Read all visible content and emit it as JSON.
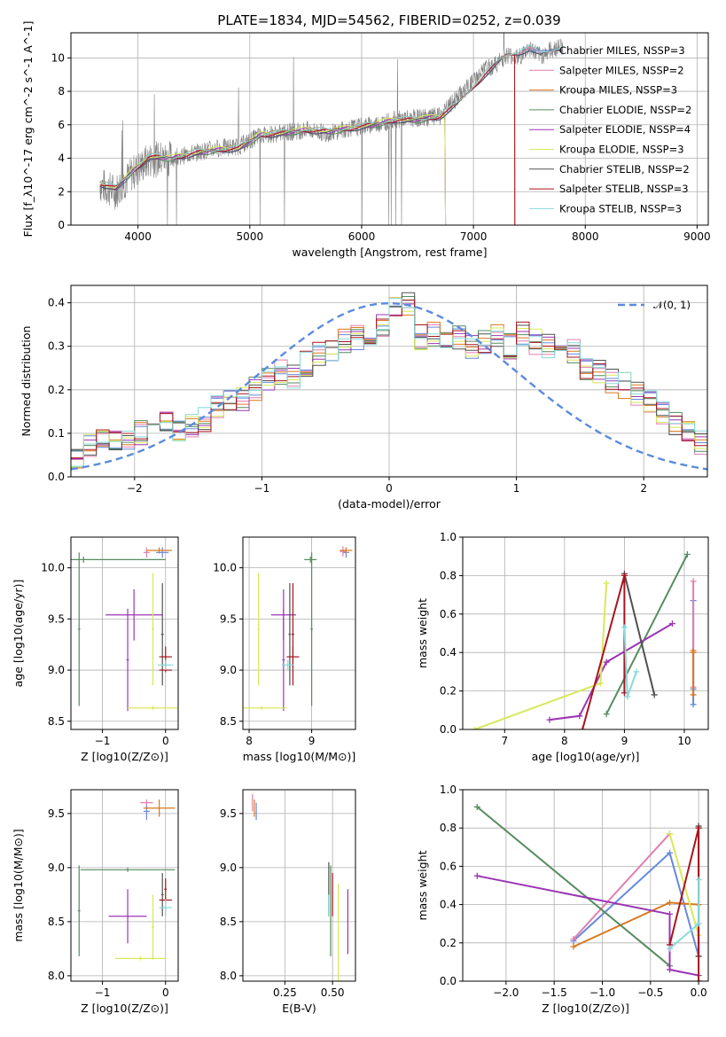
{
  "title": "PLATE=1834, MJD=54562, FIBERID=0252, z=0.039",
  "colors": {
    "Chabrier MILES": "#6688dd",
    "Salpeter MILES": "#e07fb0",
    "Kroupa MILES": "#d9781e",
    "Chabrier ELODIE": "#568c5e",
    "Salpeter ELODIE": "#9b35b5",
    "Kroupa ELODIE": "#d8e85a",
    "Chabrier STELIB": "#505050",
    "Salpeter STELIB": "#a8141e",
    "Kroupa STELIB": "#86dada",
    "data": "#808080"
  },
  "legend_main": [
    "Chabrier MILES, N$_{SSP}$=3",
    "Salpeter MILES, N$_{SSP}$=2",
    "Kroupa MILES, N$_{SSP}$=3",
    "Chabrier ELODIE, N$_{SSP}$=2",
    "Salpeter ELODIE, N$_{SSP}$=4",
    "Kroupa ELODIE, N$_{SSP}$=3",
    "Chabrier STELIB, N$_{SSP}$=2",
    "Salpeter STELIB, N$_{SSP}$=3",
    "Kroupa STELIB, N$_{SSP}$=3"
  ],
  "chart_data": [
    {
      "type": "line",
      "panel": "spectrum",
      "title": "PLATE=1834, MJD=54562, FIBERID=0252, z=0.039",
      "xlabel": "wavelength [Angstrom, rest frame]",
      "ylabel": "Flux [f_λ10^-17 erg cm^-2 s^-1 A^-1]",
      "xlim": [
        3400,
        9100
      ],
      "ylim": [
        0,
        11.5
      ],
      "xticks": [
        4000,
        5000,
        6000,
        7000,
        8000,
        9000
      ],
      "yticks": [
        0,
        2,
        4,
        6,
        8,
        10
      ],
      "series": [
        {
          "name": "data",
          "x": [
            3660,
            3800,
            3950,
            4100,
            4300,
            4500,
            4700,
            4900,
            5100,
            5300,
            5500,
            5700,
            5900,
            6100,
            6300,
            6500,
            6700,
            6850,
            7000,
            7100,
            7200,
            7300,
            7400,
            7500,
            7600,
            7700,
            7800
          ],
          "y": [
            2.4,
            2.0,
            3.1,
            3.9,
            4.0,
            4.3,
            4.6,
            4.7,
            5.4,
            5.5,
            5.7,
            5.5,
            5.8,
            6.0,
            6.3,
            6.4,
            6.5,
            7.6,
            8.6,
            9.3,
            9.6,
            10.2,
            10.0,
            10.6,
            10.1,
            10.5,
            10.7
          ]
        },
        {
          "name": "model_mean",
          "x": [
            3660,
            3800,
            3950,
            4100,
            4300,
            4500,
            4700,
            4900,
            5100,
            5300,
            5500,
            5700,
            5900,
            6100,
            6300,
            6500,
            6700,
            6850,
            7000,
            7100,
            7200,
            7300,
            7400,
            7500,
            7600,
            7700,
            7800
          ],
          "y": [
            2.5,
            2.2,
            3.2,
            4.1,
            4.0,
            4.3,
            4.5,
            4.6,
            5.4,
            5.5,
            5.7,
            5.6,
            5.8,
            6.0,
            6.3,
            6.3,
            6.5,
            7.2,
            8.3,
            9.0,
            9.6,
            10.2,
            10.3,
            10.6,
            10.2,
            10.5,
            10.6
          ]
        }
      ]
    },
    {
      "type": "bar",
      "panel": "residual histogram",
      "xlabel": "(data-model)/error",
      "ylabel": "Normed distribution",
      "xlim": [
        -2.5,
        2.5
      ],
      "ylim": [
        0,
        0.44
      ],
      "xticks": [
        -2,
        -1,
        0,
        1,
        2
      ],
      "yticks": [
        0.0,
        0.1,
        0.2,
        0.3,
        0.4
      ],
      "legend": "𝒩(0, 1)",
      "bin_width": 0.1,
      "bin_start": -2.5,
      "values": [
        0.05,
        0.07,
        0.08,
        0.09,
        0.08,
        0.1,
        0.14,
        0.12,
        0.11,
        0.12,
        0.13,
        0.16,
        0.17,
        0.18,
        0.2,
        0.22,
        0.24,
        0.23,
        0.26,
        0.28,
        0.29,
        0.31,
        0.32,
        0.33,
        0.35,
        0.39,
        0.4,
        0.32,
        0.33,
        0.31,
        0.32,
        0.3,
        0.31,
        0.32,
        0.3,
        0.33,
        0.31,
        0.3,
        0.28,
        0.29,
        0.25,
        0.24,
        0.22,
        0.21,
        0.19,
        0.17,
        0.15,
        0.12,
        0.1,
        0.08
      ]
    },
    {
      "type": "scatter",
      "panel": "age vs Z",
      "xlabel": "Z [log10(Z/Z⊙)]",
      "ylabel": "age [log10(age/yr)]",
      "xlim": [
        -1.5,
        0.2
      ],
      "ylim": [
        8.42,
        10.3
      ],
      "xticks": [
        -1,
        0
      ],
      "yticks": [
        8.5,
        9.0,
        9.5,
        10.0
      ],
      "points": [
        {
          "series": "Chabrier MILES",
          "x": -0.05,
          "y": 10.15,
          "xerr": 0.1,
          "yerr": 0.05
        },
        {
          "series": "Salpeter MILES",
          "x": -0.3,
          "y": 10.15,
          "xerr": 0.05,
          "yerr": 0.05
        },
        {
          "series": "Kroupa MILES",
          "x": -0.1,
          "y": 10.17,
          "xerr": 0.2,
          "yerr": 0.03
        },
        {
          "series": "Chabrier ELODIE",
          "x": -1.3,
          "y": 10.08,
          "xerr": 1.3,
          "yerr": 0.03
        },
        {
          "series": "Chabrier ELODIE",
          "x": -1.37,
          "y": 9.4,
          "xerr": 0.02,
          "yerr": 0.75
        },
        {
          "series": "Salpeter ELODIE",
          "x": -0.5,
          "y": 9.54,
          "xerr": 0.45,
          "yerr": 0.25
        },
        {
          "series": "Salpeter ELODIE",
          "x": -0.6,
          "y": 9.1,
          "xerr": 0.02,
          "yerr": 0.5
        },
        {
          "series": "Kroupa ELODIE",
          "x": -0.2,
          "y": 8.63,
          "xerr": 0.4,
          "yerr": 0.02
        },
        {
          "series": "Kroupa ELODIE",
          "x": -0.2,
          "y": 9.4,
          "xerr": 0.02,
          "yerr": 0.55
        },
        {
          "series": "Chabrier STELIB",
          "x": -0.05,
          "y": 9.35,
          "xerr": 0.02,
          "yerr": 0.5
        },
        {
          "series": "Salpeter STELIB",
          "x": 0.0,
          "y": 9.13,
          "xerr": 0.1,
          "yerr": 0.1
        },
        {
          "series": "Salpeter STELIB",
          "x": 0.0,
          "y": 9.0,
          "xerr": 0.1,
          "yerr": 0.02
        },
        {
          "series": "Kroupa STELIB",
          "x": 0.0,
          "y": 9.05,
          "xerr": 0.12,
          "yerr": 0.05
        }
      ]
    },
    {
      "type": "scatter",
      "panel": "age vs mass",
      "xlabel": "mass [log10(M/M⊙)]",
      "xlim": [
        7.9,
        9.7
      ],
      "ylim": [
        8.42,
        10.3
      ],
      "xticks": [
        8,
        9
      ],
      "yticks": [
        8.5,
        9.0,
        9.5,
        10.0
      ],
      "points": [
        {
          "series": "Chabrier MILES",
          "x": 9.55,
          "y": 10.15,
          "xerr": 0.05,
          "yerr": 0.05
        },
        {
          "series": "Salpeter MILES",
          "x": 9.5,
          "y": 10.16,
          "xerr": 0.05,
          "yerr": 0.05
        },
        {
          "series": "Kroupa MILES",
          "x": 9.55,
          "y": 10.17,
          "xerr": 0.1,
          "yerr": 0.03
        },
        {
          "series": "Chabrier ELODIE",
          "x": 8.98,
          "y": 10.08,
          "xerr": 0.1,
          "yerr": 0.03
        },
        {
          "series": "Chabrier ELODIE",
          "x": 9.0,
          "y": 9.4,
          "xerr": 0.02,
          "yerr": 0.75
        },
        {
          "series": "Salpeter ELODIE",
          "x": 8.55,
          "y": 9.54,
          "xerr": 0.2,
          "yerr": 0.25
        },
        {
          "series": "Salpeter ELODIE",
          "x": 8.55,
          "y": 9.1,
          "xerr": 0.02,
          "yerr": 0.5
        },
        {
          "series": "Kroupa ELODIE",
          "x": 8.2,
          "y": 8.63,
          "xerr": 0.4,
          "yerr": 0.02
        },
        {
          "series": "Kroupa ELODIE",
          "x": 8.15,
          "y": 9.4,
          "xerr": 0.02,
          "yerr": 0.55
        },
        {
          "series": "Chabrier STELIB",
          "x": 8.65,
          "y": 9.35,
          "xerr": 0.02,
          "yerr": 0.5
        },
        {
          "series": "Salpeter STELIB",
          "x": 8.7,
          "y": 9.13,
          "xerr": 0.1,
          "yerr": 0.1
        },
        {
          "series": "Salpeter STELIB",
          "x": 8.7,
          "y": 9.35,
          "xerr": 0.02,
          "yerr": 0.5
        },
        {
          "series": "Kroupa STELIB",
          "x": 8.62,
          "y": 9.05,
          "xerr": 0.1,
          "yerr": 0.05
        }
      ]
    },
    {
      "type": "line",
      "panel": "mass weight vs age",
      "xlabel": "age [log10(age/yr)]",
      "ylabel": "mass weight",
      "xlim": [
        6.3,
        10.4
      ],
      "ylim": [
        0,
        1
      ],
      "xticks": [
        7,
        8,
        9,
        10
      ],
      "yticks": [
        0.0,
        0.2,
        0.4,
        0.6,
        0.8,
        1.0
      ],
      "series": [
        {
          "name": "Chabrier MILES",
          "x": [
            10.15,
            10.15,
            10.15
          ],
          "y": [
            0.13,
            0.21,
            0.67
          ]
        },
        {
          "name": "Salpeter MILES",
          "x": [
            10.15,
            10.15
          ],
          "y": [
            0.22,
            0.77
          ]
        },
        {
          "name": "Kroupa MILES",
          "x": [
            10.15,
            10.15,
            10.15
          ],
          "y": [
            0.18,
            0.41,
            0.4
          ]
        },
        {
          "name": "Chabrier ELODIE",
          "x": [
            8.7,
            10.05
          ],
          "y": [
            0.08,
            0.91
          ]
        },
        {
          "name": "Salpeter ELODIE",
          "x": [
            7.75,
            8.25,
            8.7,
            9.8
          ],
          "y": [
            0.05,
            0.07,
            0.35,
            0.55
          ]
        },
        {
          "name": "Kroupa ELODIE",
          "x": [
            6.5,
            8.6,
            8.7
          ],
          "y": [
            0.0,
            0.24,
            0.76
          ]
        },
        {
          "name": "Chabrier STELIB",
          "x": [
            9.0,
            9.5
          ],
          "y": [
            0.81,
            0.18
          ]
        },
        {
          "name": "Salpeter STELIB",
          "x": [
            8.3,
            9.0,
            9.0
          ],
          "y": [
            0.0,
            0.8,
            0.19
          ]
        },
        {
          "name": "Kroupa STELIB",
          "x": [
            9.0,
            9.05,
            9.2
          ],
          "y": [
            0.53,
            0.17,
            0.3
          ]
        }
      ]
    },
    {
      "type": "scatter",
      "panel": "mass vs Z",
      "xlabel": "Z [log10(Z/Z⊙)]",
      "ylabel": "mass [log10(M/M⊙)]",
      "xlim": [
        -1.5,
        0.2
      ],
      "ylim": [
        7.95,
        9.72
      ],
      "xticks": [
        -1,
        0
      ],
      "yticks": [
        8.0,
        8.5,
        9.0,
        9.5
      ],
      "points": [
        {
          "series": "Chabrier MILES",
          "x": -0.3,
          "y": 9.52,
          "xerr": 0.05,
          "yerr": 0.08
        },
        {
          "series": "Salpeter MILES",
          "x": -0.3,
          "y": 9.6,
          "xerr": 0.1,
          "yerr": 0.03
        },
        {
          "series": "Kroupa MILES",
          "x": -0.1,
          "y": 9.55,
          "xerr": 0.25,
          "yerr": 0.08
        },
        {
          "series": "Chabrier ELODIE",
          "x": -0.6,
          "y": 8.98,
          "xerr": 0.75,
          "yerr": 0.02
        },
        {
          "series": "Chabrier ELODIE",
          "x": -1.37,
          "y": 8.6,
          "xerr": 0.02,
          "yerr": 0.42
        },
        {
          "series": "Salpeter ELODIE",
          "x": -0.6,
          "y": 8.55,
          "xerr": 0.3,
          "yerr": 0.25
        },
        {
          "series": "Kroupa ELODIE",
          "x": -0.4,
          "y": 8.16,
          "xerr": 0.4,
          "yerr": 0.02
        },
        {
          "series": "Kroupa ELODIE",
          "x": -0.2,
          "y": 8.45,
          "xerr": 0.02,
          "yerr": 0.3
        },
        {
          "series": "Chabrier STELIB",
          "x": -0.05,
          "y": 8.75,
          "xerr": 0.02,
          "yerr": 0.2
        },
        {
          "series": "Salpeter STELIB",
          "x": 0.0,
          "y": 8.7,
          "xerr": 0.1,
          "yerr": 0.02
        },
        {
          "series": "Salpeter STELIB",
          "x": 0.0,
          "y": 8.8,
          "xerr": 0.02,
          "yerr": 0.1
        },
        {
          "series": "Kroupa STELIB",
          "x": 0.0,
          "y": 8.63,
          "xerr": 0.1,
          "yerr": 0.08
        }
      ]
    },
    {
      "type": "scatter",
      "panel": "mass vs E(B-V)",
      "xlabel": "E(B-V)",
      "xlim": [
        0.03,
        0.62
      ],
      "ylim": [
        7.95,
        9.72
      ],
      "xticks": [
        0.25,
        0.5
      ],
      "xticklabels": [
        "0.25",
        "0.50"
      ],
      "yticks": [
        8.0,
        8.5,
        9.0,
        9.5
      ],
      "points": [
        {
          "series": "Chabrier MILES",
          "x": 0.1,
          "y": 9.52,
          "yerr": 0.08
        },
        {
          "series": "Salpeter MILES",
          "x": 0.08,
          "y": 9.6,
          "yerr": 0.08
        },
        {
          "series": "Kroupa MILES",
          "x": 0.09,
          "y": 9.55,
          "yerr": 0.08
        },
        {
          "series": "Chabrier ELODIE",
          "x": 0.49,
          "y": 8.6,
          "yerr": 0.42
        },
        {
          "series": "Salpeter ELODIE",
          "x": 0.58,
          "y": 8.5,
          "yerr": 0.3
        },
        {
          "series": "Kroupa ELODIE",
          "x": 0.53,
          "y": 8.3,
          "yerr": 0.55
        },
        {
          "series": "Chabrier STELIB",
          "x": 0.48,
          "y": 8.8,
          "yerr": 0.25
        },
        {
          "series": "Salpeter STELIB",
          "x": 0.5,
          "y": 8.75,
          "yerr": 0.2
        },
        {
          "series": "Kroupa STELIB",
          "x": 0.48,
          "y": 8.65,
          "yerr": 0.1
        }
      ]
    },
    {
      "type": "line",
      "panel": "mass weight vs Z",
      "xlabel": "Z [log10(Z/Z⊙)]",
      "ylabel": "mass weight",
      "xlim": [
        -2.45,
        0.1
      ],
      "ylim": [
        0,
        1
      ],
      "xticks": [
        -2.0,
        -1.5,
        -1.0,
        -0.5,
        0.0
      ],
      "xticklabels": [
        "−2.0",
        "−1.5",
        "−1.0",
        "−0.5",
        "0.0"
      ],
      "yticks": [
        0.0,
        0.2,
        0.4,
        0.6,
        0.8,
        1.0
      ],
      "series": [
        {
          "name": "Chabrier MILES",
          "x": [
            -1.3,
            -0.3,
            0.0
          ],
          "y": [
            0.21,
            0.67,
            0.13
          ]
        },
        {
          "name": "Salpeter MILES",
          "x": [
            -1.3,
            -0.3
          ],
          "y": [
            0.22,
            0.77
          ]
        },
        {
          "name": "Kroupa MILES",
          "x": [
            -1.3,
            -0.3,
            0.0
          ],
          "y": [
            0.18,
            0.41,
            0.4
          ]
        },
        {
          "name": "Chabrier ELODIE",
          "x": [
            -2.3,
            -0.3
          ],
          "y": [
            0.91,
            0.08
          ]
        },
        {
          "name": "Salpeter ELODIE",
          "x": [
            -2.3,
            -0.3,
            -0.3,
            0.0
          ],
          "y": [
            0.55,
            0.35,
            0.06,
            0.03
          ]
        },
        {
          "name": "Kroupa ELODIE",
          "x": [
            -0.3,
            0.0
          ],
          "y": [
            0.77,
            0.24
          ]
        },
        {
          "name": "Chabrier STELIB",
          "x": [
            0.0,
            0.0
          ],
          "y": [
            0.81,
            0.13
          ]
        },
        {
          "name": "Salpeter STELIB",
          "x": [
            -0.3,
            0.0,
            0.0
          ],
          "y": [
            0.19,
            0.8,
            0.0
          ]
        },
        {
          "name": "Kroupa STELIB",
          "x": [
            0.0,
            0.0,
            -0.3
          ],
          "y": [
            0.53,
            0.3,
            0.17
          ]
        }
      ]
    }
  ]
}
